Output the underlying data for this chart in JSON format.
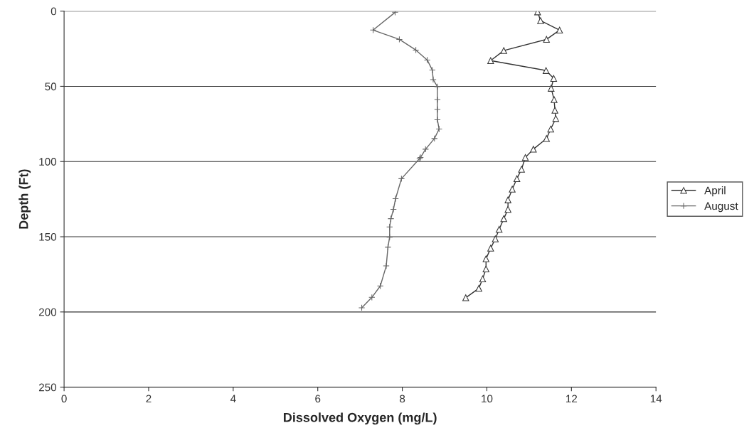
{
  "chart_data": {
    "type": "line",
    "xlabel": "Dissolved Oxygen (mg/L)",
    "ylabel": "Depth (Ft)",
    "xlim": [
      0,
      14
    ],
    "xticks": [
      0,
      2,
      4,
      6,
      8,
      10,
      12,
      14
    ],
    "ylim": [
      250,
      0
    ],
    "yticks": [
      0,
      50,
      100,
      150,
      200,
      250
    ],
    "grid": "y",
    "legend": "right",
    "series": [
      {
        "name": "April",
        "color": "#333333",
        "marker": "triangle",
        "x": [
          11.2,
          11.27,
          11.72,
          11.41,
          10.4,
          10.09,
          11.4,
          11.58,
          11.52,
          11.59,
          11.61,
          11.63,
          11.51,
          11.41,
          11.1,
          10.91,
          10.82,
          10.71,
          10.6,
          10.5,
          10.5,
          10.4,
          10.29,
          10.2,
          10.09,
          9.98,
          9.98,
          9.9,
          9.81,
          9.5
        ],
        "values": [
          0.5,
          6.3,
          12.6,
          18.8,
          26.2,
          32.9,
          39.5,
          44.7,
          51.3,
          58.8,
          65.9,
          71.4,
          78.4,
          84.7,
          91.8,
          97.3,
          105.1,
          111.4,
          118.4,
          125.5,
          131.8,
          138,
          145.1,
          151.4,
          157.6,
          164.7,
          171.4,
          178,
          184.3,
          190.6
        ]
      },
      {
        "name": "August",
        "color": "#666666",
        "marker": "cross",
        "x": [
          7.83,
          7.31,
          7.93,
          8.32,
          8.59,
          8.71,
          8.73,
          8.83,
          8.83,
          8.83,
          8.83,
          8.87,
          8.76,
          8.55,
          8.43,
          8.41,
          7.98,
          7.84,
          7.79,
          7.73,
          7.7,
          7.7,
          7.66,
          7.62,
          7.48,
          7.28,
          7.04
        ],
        "values": [
          0.8,
          12.6,
          18.8,
          25.9,
          32.5,
          39.2,
          45.5,
          50.2,
          58.8,
          65.4,
          72.2,
          78.4,
          84.7,
          91.8,
          97.3,
          98,
          111.4,
          124.7,
          131.8,
          138,
          143.5,
          150.3,
          156.9,
          169.4,
          182.7,
          190.3,
          197.2
        ]
      }
    ]
  }
}
